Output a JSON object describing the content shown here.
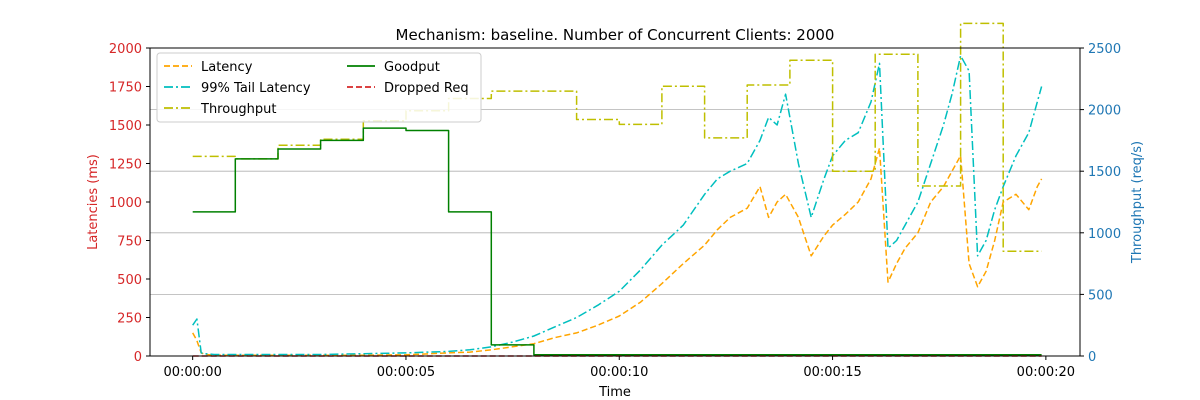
{
  "chart_data": {
    "type": "line",
    "title": "Mechanism: baseline. Number of Concurrent Clients: 2000",
    "xlabel": "Time",
    "ylabel_left": "Latencies (ms)",
    "ylabel_right": "Throughput (req/s)",
    "xlim": [
      -1.0,
      20.8
    ],
    "ylim_left": [
      0,
      2000
    ],
    "ylim_right": [
      0,
      2500
    ],
    "x_ticks": [
      {
        "value": 0,
        "label": "00:00:00"
      },
      {
        "value": 5,
        "label": "00:00:05"
      },
      {
        "value": 10,
        "label": "00:00:10"
      },
      {
        "value": 15,
        "label": "00:00:15"
      },
      {
        "value": 20,
        "label": "00:00:20"
      }
    ],
    "y_ticks_left": [
      0,
      250,
      500,
      750,
      1000,
      1250,
      1500,
      1750,
      2000
    ],
    "y_ticks_right": [
      0,
      500,
      1000,
      1500,
      2000,
      2500
    ],
    "grid": "horizontal, right axis",
    "legend_position": "top-left",
    "colors": {
      "left_axis": "#d62728",
      "right_axis": "#1f77b4",
      "latency": "#ffa500",
      "tail_latency": "#00bfbf",
      "throughput": "#bfbf00",
      "goodput": "#008000",
      "dropped": "#d62728"
    },
    "series": [
      {
        "name": "Latency",
        "axis": "left",
        "style": "dashed",
        "x": [
          0,
          0.1,
          0.2,
          0.3,
          0.5,
          1,
          2,
          3,
          4,
          5,
          6,
          6.5,
          7,
          7.5,
          8,
          8.5,
          9,
          9.5,
          10,
          10.5,
          11,
          11.5,
          12,
          12.3,
          12.6,
          13,
          13.3,
          13.5,
          13.7,
          13.9,
          14.2,
          14.5,
          14.8,
          15,
          15.3,
          15.6,
          15.9,
          16.1,
          16.3,
          16.5,
          16.7,
          17,
          17.3,
          17.6,
          17.8,
          18,
          18.2,
          18.4,
          18.6,
          18.8,
          19,
          19.3,
          19.6,
          19.8,
          19.9
        ],
        "y": [
          150,
          100,
          20,
          10,
          5,
          5,
          5,
          5,
          5,
          8,
          20,
          25,
          40,
          60,
          80,
          120,
          150,
          200,
          260,
          350,
          470,
          600,
          720,
          820,
          900,
          960,
          1100,
          900,
          1000,
          1050,
          900,
          650,
          780,
          850,
          920,
          1000,
          1150,
          1350,
          480,
          600,
          700,
          800,
          1000,
          1100,
          1200,
          1300,
          600,
          450,
          550,
          750,
          1000,
          1050,
          950,
          1100,
          1150
        ]
      },
      {
        "name": "99% Tail Latency",
        "axis": "left",
        "style": "dashdot",
        "x": [
          0,
          0.1,
          0.2,
          0.3,
          0.5,
          1,
          2,
          3,
          4,
          5,
          6,
          6.5,
          7,
          7.5,
          8,
          8.5,
          9,
          9.5,
          10,
          10.5,
          11,
          11.5,
          12,
          12.3,
          12.6,
          13,
          13.3,
          13.5,
          13.7,
          13.9,
          14.2,
          14.5,
          14.8,
          15,
          15.3,
          15.6,
          15.9,
          16.1,
          16.3,
          16.5,
          16.7,
          17,
          17.3,
          17.6,
          17.8,
          18,
          18.2,
          18.4,
          18.6,
          18.8,
          19,
          19.3,
          19.6,
          19.8,
          19.9
        ],
        "y": [
          200,
          240,
          20,
          15,
          10,
          10,
          10,
          10,
          15,
          20,
          30,
          40,
          60,
          90,
          130,
          190,
          250,
          330,
          420,
          560,
          720,
          850,
          1050,
          1150,
          1200,
          1250,
          1400,
          1550,
          1500,
          1700,
          1250,
          900,
          1150,
          1300,
          1400,
          1450,
          1650,
          1900,
          700,
          750,
          850,
          1000,
          1250,
          1500,
          1700,
          1950,
          1850,
          650,
          750,
          950,
          1100,
          1300,
          1450,
          1650,
          1750
        ]
      },
      {
        "name": "Throughput",
        "axis": "right",
        "style": "dashdot",
        "x": [
          0,
          1,
          1,
          2,
          2,
          3,
          3,
          4,
          4,
          5,
          5,
          6,
          6,
          7,
          7,
          8,
          8,
          9,
          9,
          10,
          10,
          11,
          11,
          12,
          12,
          13,
          13,
          14,
          14,
          15,
          15,
          16,
          16,
          17,
          17,
          18,
          18,
          19,
          19,
          19.9
        ],
        "y": [
          1620,
          1620,
          1600,
          1600,
          1710,
          1710,
          1760,
          1760,
          1910,
          1910,
          1990,
          1990,
          2090,
          2090,
          2150,
          2150,
          2150,
          2150,
          1920,
          1920,
          1880,
          1880,
          2190,
          2190,
          1770,
          1770,
          2200,
          2200,
          2400,
          2400,
          1500,
          1500,
          2450,
          2450,
          1380,
          1380,
          2700,
          2700,
          850,
          850
        ]
      },
      {
        "name": "Goodput",
        "axis": "right",
        "style": "solid",
        "x": [
          0,
          1,
          1,
          2,
          2,
          3,
          3,
          4,
          4,
          5,
          5,
          6,
          6,
          7,
          7,
          8,
          8,
          19.9
        ],
        "y": [
          1170,
          1170,
          1600,
          1600,
          1680,
          1680,
          1750,
          1750,
          1850,
          1850,
          1830,
          1830,
          1170,
          1170,
          90,
          90,
          10,
          10
        ]
      },
      {
        "name": "Dropped Req",
        "axis": "right",
        "style": "dashed",
        "x": [
          0,
          19.9
        ],
        "y": [
          0,
          0
        ]
      }
    ]
  }
}
